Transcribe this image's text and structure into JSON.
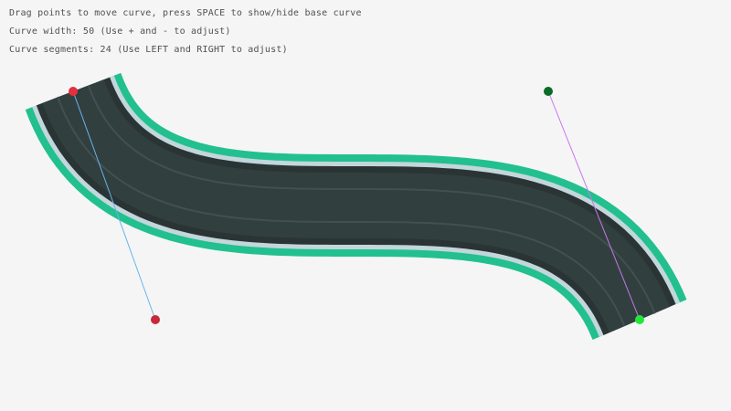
{
  "instructions": {
    "line1": "Drag points to move curve, press SPACE to show/hide base curve",
    "line2": "Curve width: 50 (Use + and - to adjust)",
    "line3": "Curve segments: 24 (Use LEFT and RIGHT to adjust)"
  },
  "curve": {
    "width": 50,
    "segments": 24,
    "colors": {
      "outer_border": "#22c08e",
      "inner_border": "#c2d6dc",
      "edge_shade": "#2a3434",
      "road": "#323f3f",
      "lane_line": "#415050",
      "start_point": "#e62e3c",
      "start_tangent_point": "#c8283a",
      "end_point": "#22e63a",
      "end_tangent_point": "#0c6b28",
      "start_tangent_line": "#66b4f0",
      "end_tangent_line": "#c878f0"
    }
  }
}
